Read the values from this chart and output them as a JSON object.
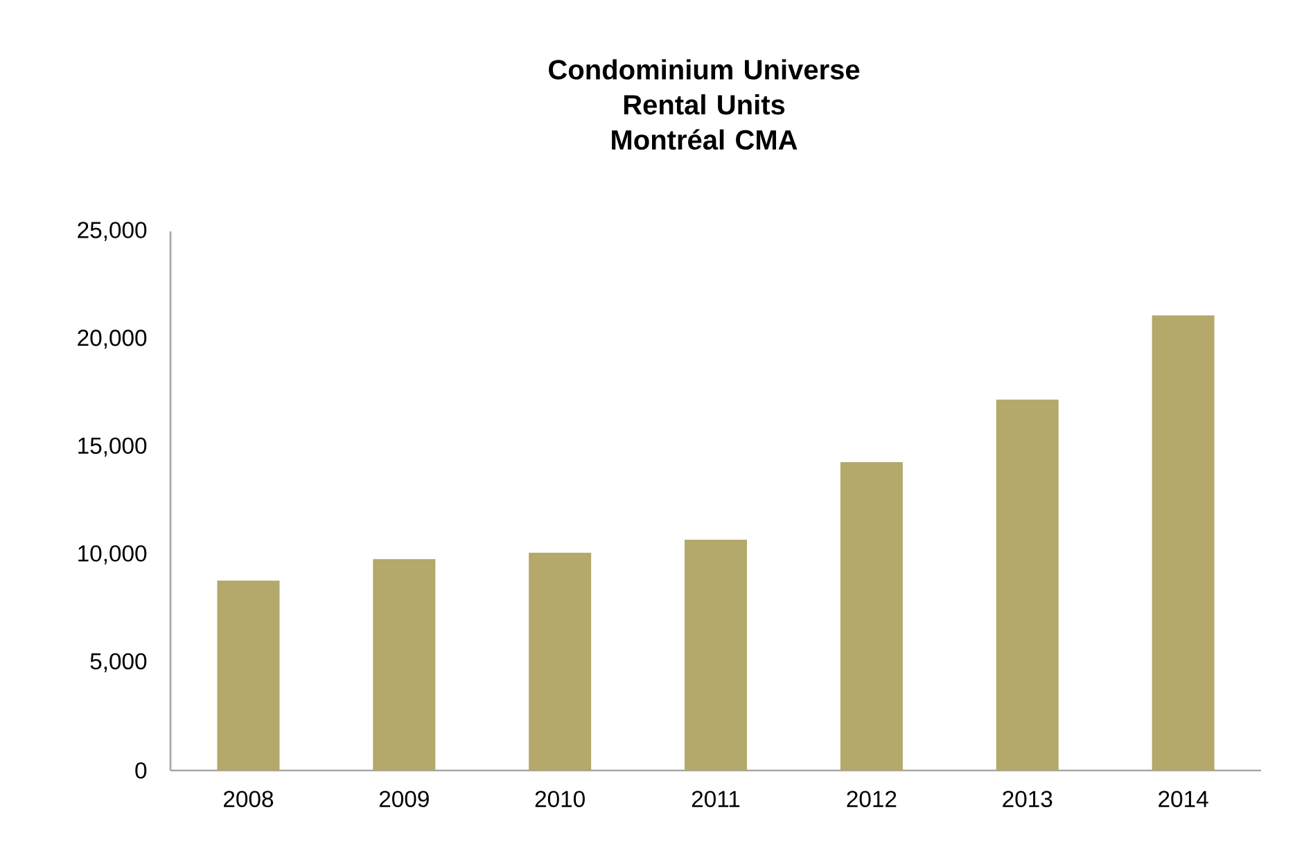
{
  "chart_data": {
    "type": "bar",
    "title": "Condominium Universe",
    "subtitle": "Rental Units Montréal CMA",
    "categories": [
      "2008",
      "2009",
      "2010",
      "2011",
      "2012",
      "2013",
      "2014"
    ],
    "values": [
      8800,
      9800,
      10100,
      10700,
      14300,
      17200,
      21100
    ],
    "color": "#b4a86a",
    "ylim": [
      0,
      25000
    ],
    "yticks": [
      0,
      {
        "value": 5000,
        "label": "5,000"
      },
      {
        "value": 10000,
        "label": "10,000"
      },
      {
        "value": 15000,
        "label": "15,000"
      },
      {
        "value": 20000,
        "label": "20,000"
      },
      {
        "value": 25000,
        "label": "25,000"
      }
    ],
    "grid": false
  }
}
